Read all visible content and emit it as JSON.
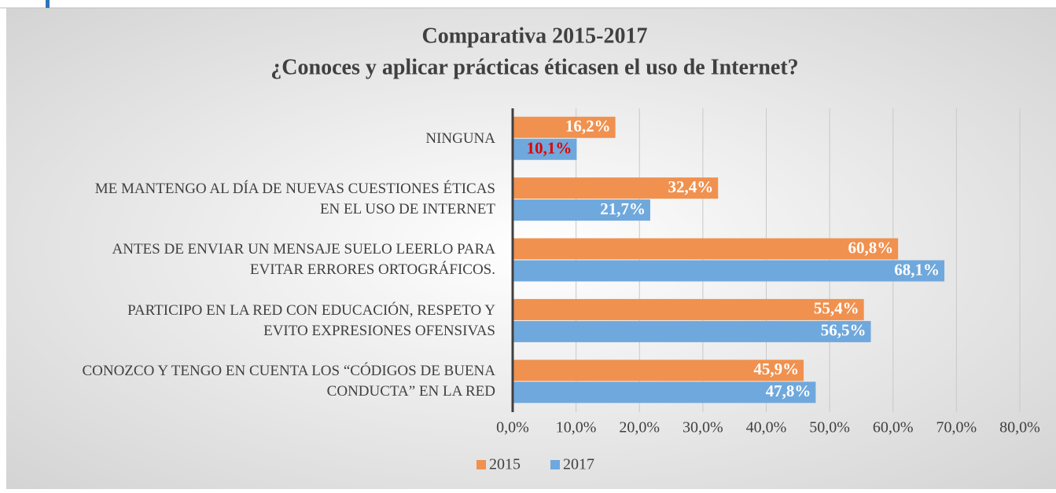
{
  "chart_data": {
    "type": "hbar",
    "title": "Comparativa 2015-2017",
    "subtitle": "¿Conoces y aplicar prácticas éticasen el uso de Internet?",
    "categories": [
      "NINGUNA",
      "ME MANTENGO AL DÍA DE NUEVAS CUESTIONES ÉTICAS\nEN EL USO DE INTERNET",
      "ANTES DE ENVIAR UN MENSAJE SUELO LEERLO PARA\nEVITAR ERRORES ORTOGRÁFICOS.",
      "PARTICIPO EN LA RED CON EDUCACIÓN, RESPETO Y\nEVITO EXPRESIONES OFENSIVAS",
      "CONOZCO Y TENGO EN CUENTA LOS “CÓDIGOS DE BUENA\nCONDUCTA” EN LA RED"
    ],
    "series": [
      {
        "name": "2015",
        "color": "#f0914f",
        "values": [
          16.2,
          32.4,
          60.8,
          55.4,
          45.9
        ],
        "value_labels": [
          "16,2%",
          "32,4%",
          "60,8%",
          "55,4%",
          "45,9%"
        ],
        "value_label_colors": [
          "#ffffff",
          "#ffffff",
          "#ffffff",
          "#ffffff",
          "#ffffff"
        ]
      },
      {
        "name": "2017",
        "color": "#6fa8dc",
        "values": [
          10.1,
          21.7,
          68.1,
          56.5,
          47.8
        ],
        "value_labels": [
          "10,1%",
          "21,7%",
          "68,1%",
          "56,5%",
          "47,8%"
        ],
        "value_label_colors": [
          "#e00000",
          "#ffffff",
          "#ffffff",
          "#ffffff",
          "#ffffff"
        ]
      }
    ],
    "xlim": [
      0,
      80
    ],
    "xticks": [
      {
        "value": 0,
        "label": "0,0%"
      },
      {
        "value": 10,
        "label": "10,0%"
      },
      {
        "value": 20,
        "label": "20,0%"
      },
      {
        "value": 30,
        "label": "30,0%"
      },
      {
        "value": 40,
        "label": "40,0%"
      },
      {
        "value": 50,
        "label": "50,0%"
      },
      {
        "value": 60,
        "label": "60,0%"
      },
      {
        "value": 70,
        "label": "70,0%"
      },
      {
        "value": 80,
        "label": "80,0%"
      }
    ],
    "grid": true,
    "legend": "bottom"
  }
}
